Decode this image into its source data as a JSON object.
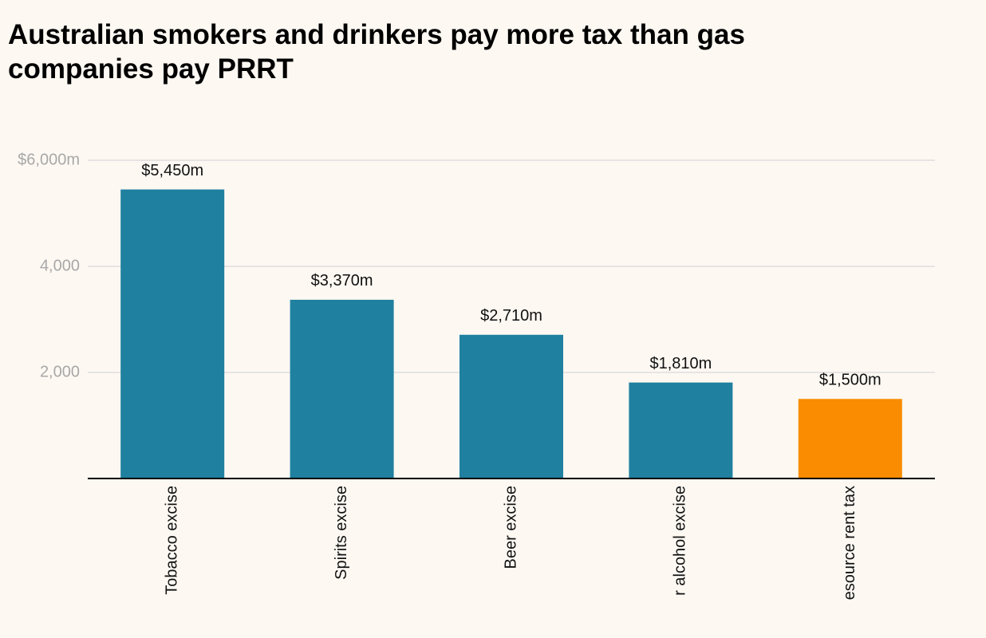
{
  "chart_data": {
    "type": "bar",
    "title": "Australian smokers and drinkers pay more tax than gas companies pay PRRT",
    "categories": [
      "Tobacco excise",
      "Spirits excise",
      "Beer excise",
      "r alcohol excise",
      "esource rent tax"
    ],
    "values": [
      5450,
      3370,
      2710,
      1810,
      1500
    ],
    "value_labels": [
      "$5,450m",
      "$3,370m",
      "$2,710m",
      "$1,810m",
      "$1,500m"
    ],
    "colors": [
      "#1f80a0",
      "#1f80a0",
      "#1f80a0",
      "#1f80a0",
      "#f98c00"
    ],
    "ylim": [
      0,
      6000
    ],
    "yticks": [
      {
        "value": 2000,
        "label": "2,000"
      },
      {
        "value": 4000,
        "label": "4,000"
      },
      {
        "value": 6000,
        "label": "$6,000m"
      }
    ],
    "grid": true
  }
}
